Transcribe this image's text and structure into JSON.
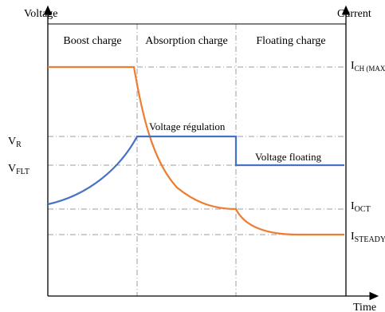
{
  "diagram": {
    "y_left_label": "Voltage",
    "y_right_label": "Current",
    "x_label": "Time",
    "phases": [
      {
        "label": "Boost charge"
      },
      {
        "label": "Absorption charge"
      },
      {
        "label": "Floating charge"
      }
    ],
    "left_ticks": [
      {
        "main": "V",
        "sub": "R"
      },
      {
        "main": "V",
        "sub": "FLT"
      }
    ],
    "right_ticks": [
      {
        "main": "I",
        "sub": "CH (MAX"
      },
      {
        "main": "I",
        "sub": "OCT"
      },
      {
        "main": "I",
        "sub": "STEADY"
      }
    ],
    "annotations": {
      "regulation": "Voltage régulation",
      "floating": "Voltage floating"
    },
    "colors": {
      "voltage": "#4472c4",
      "current": "#ed7d31",
      "grid": "#9e9e9e",
      "axis": "#000000"
    }
  }
}
